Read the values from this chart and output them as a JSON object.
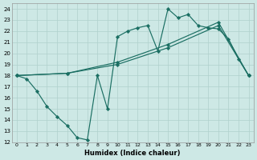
{
  "xlabel": "Humidex (Indice chaleur)",
  "xlim": [
    -0.5,
    23.5
  ],
  "ylim": [
    12,
    24.5
  ],
  "yticks": [
    12,
    13,
    14,
    15,
    16,
    17,
    18,
    19,
    20,
    21,
    22,
    23,
    24
  ],
  "xticks": [
    0,
    1,
    2,
    3,
    4,
    5,
    6,
    7,
    8,
    9,
    10,
    11,
    12,
    13,
    14,
    15,
    16,
    17,
    18,
    19,
    20,
    21,
    22,
    23
  ],
  "bg_color": "#cde8e5",
  "line_color": "#1a6e62",
  "grid_color": "#b0d0cc",
  "line1_x": [
    0,
    1,
    2,
    3,
    4,
    5,
    6,
    7,
    8,
    9,
    10,
    11,
    12,
    13,
    14,
    15,
    16,
    17,
    18,
    19,
    20,
    21,
    22,
    23
  ],
  "line1_y": [
    18,
    17.7,
    16.6,
    15.2,
    14.3,
    13.5,
    12.4,
    12.2,
    18.0,
    15.0,
    21.5,
    22.0,
    22.3,
    22.5,
    20.2,
    24.0,
    23.2,
    23.5,
    22.5,
    22.3,
    22.2,
    21.3,
    19.5,
    18.0
  ],
  "line2_x": [
    0,
    5,
    10,
    15,
    20,
    23
  ],
  "line2_y": [
    18.0,
    18.2,
    19.0,
    20.5,
    22.5,
    18.0
  ],
  "line3_x": [
    0,
    5,
    10,
    15,
    20,
    23
  ],
  "line3_y": [
    18.0,
    18.2,
    19.2,
    20.8,
    22.8,
    18.0
  ]
}
